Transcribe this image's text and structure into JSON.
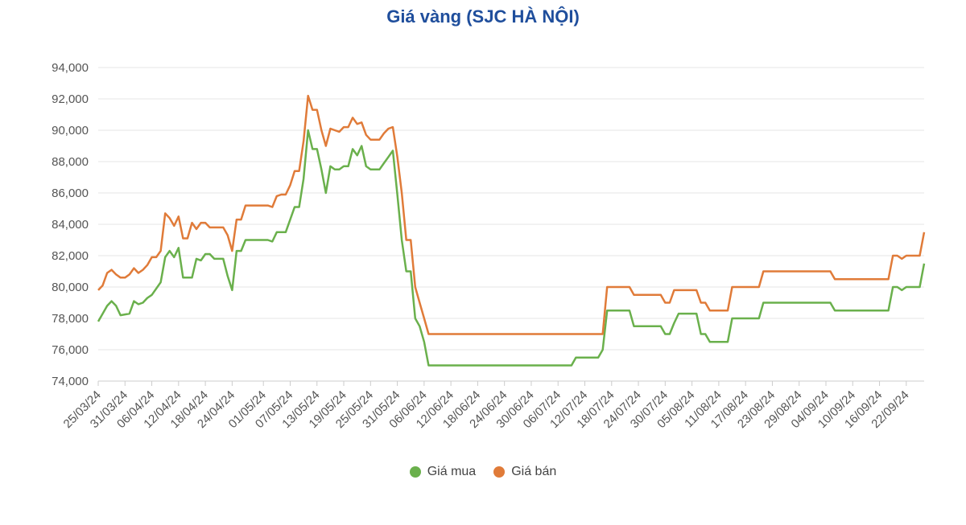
{
  "chart_data": {
    "type": "line",
    "title": "Giá vàng (SJC HÀ NỘI)",
    "xlabel": "",
    "ylabel": "",
    "ylim": [
      74000,
      94000
    ],
    "y_ticks": [
      74000,
      76000,
      78000,
      80000,
      82000,
      84000,
      86000,
      88000,
      90000,
      92000,
      94000
    ],
    "x_tick_labels": [
      "25/03/24",
      "31/03/24",
      "06/04/24",
      "12/04/24",
      "18/04/24",
      "24/04/24",
      "01/05/24",
      "07/05/24",
      "13/05/24",
      "19/05/24",
      "25/05/24",
      "31/05/24",
      "06/06/24",
      "12/06/24",
      "18/06/24",
      "24/06/24",
      "30/06/24",
      "06/07/24",
      "12/07/24",
      "18/07/24",
      "24/07/24",
      "30/07/24",
      "05/08/24",
      "11/08/24",
      "17/08/24",
      "23/08/24",
      "29/08/24",
      "04/09/24",
      "10/09/24",
      "16/09/24",
      "22/09/24"
    ],
    "grid": true,
    "legend_position": "bottom-center",
    "series": [
      {
        "name": "Giá mua",
        "color": "#6ab04c",
        "points": [
          [
            "25/03/24",
            77800
          ],
          [
            "27/03/24",
            78800
          ],
          [
            "28/03/24",
            79100
          ],
          [
            "29/03/24",
            78800
          ],
          [
            "30/03/24",
            78200
          ],
          [
            "01/04/24",
            78300
          ],
          [
            "02/04/24",
            79100
          ],
          [
            "03/04/24",
            78900
          ],
          [
            "04/04/24",
            79000
          ],
          [
            "05/04/24",
            79300
          ],
          [
            "06/04/24",
            79500
          ],
          [
            "08/04/24",
            80300
          ],
          [
            "09/04/24",
            81900
          ],
          [
            "10/04/24",
            82300
          ],
          [
            "11/04/24",
            81900
          ],
          [
            "12/04/24",
            82500
          ],
          [
            "13/04/24",
            80600
          ],
          [
            "15/04/24",
            80600
          ],
          [
            "16/04/24",
            81800
          ],
          [
            "17/04/24",
            81700
          ],
          [
            "18/04/24",
            82100
          ],
          [
            "19/04/24",
            82100
          ],
          [
            "20/04/24",
            81800
          ],
          [
            "22/04/24",
            81800
          ],
          [
            "23/04/24",
            80700
          ],
          [
            "24/04/24",
            79800
          ],
          [
            "25/04/24",
            82300
          ],
          [
            "26/04/24",
            82300
          ],
          [
            "27/04/24",
            83000
          ],
          [
            "02/05/24",
            83000
          ],
          [
            "03/05/24",
            82900
          ],
          [
            "04/05/24",
            83500
          ],
          [
            "06/05/24",
            83500
          ],
          [
            "07/05/24",
            84300
          ],
          [
            "08/05/24",
            85100
          ],
          [
            "09/05/24",
            85100
          ],
          [
            "10/05/24",
            86900
          ],
          [
            "11/05/24",
            90000
          ],
          [
            "12/05/24",
            88800
          ],
          [
            "13/05/24",
            88800
          ],
          [
            "14/05/24",
            87500
          ],
          [
            "15/05/24",
            86000
          ],
          [
            "16/05/24",
            87700
          ],
          [
            "17/05/24",
            87500
          ],
          [
            "18/05/24",
            87500
          ],
          [
            "19/05/24",
            87700
          ],
          [
            "20/05/24",
            87700
          ],
          [
            "21/05/24",
            88800
          ],
          [
            "22/05/24",
            88400
          ],
          [
            "23/05/24",
            89000
          ],
          [
            "24/05/24",
            87700
          ],
          [
            "25/05/24",
            87500
          ],
          [
            "27/05/24",
            87500
          ],
          [
            "28/05/24",
            87900
          ],
          [
            "29/05/24",
            88300
          ],
          [
            "30/05/24",
            88700
          ],
          [
            "31/05/24",
            85900
          ],
          [
            "01/06/24",
            83000
          ],
          [
            "02/06/24",
            81000
          ],
          [
            "03/06/24",
            81000
          ],
          [
            "04/06/24",
            78000
          ],
          [
            "05/06/24",
            77500
          ],
          [
            "06/06/24",
            76500
          ],
          [
            "07/06/24",
            75000
          ],
          [
            "08/06/24",
            75000
          ],
          [
            "09/07/24",
            75000
          ],
          [
            "10/07/24",
            75500
          ],
          [
            "13/07/24",
            75500
          ],
          [
            "15/07/24",
            75500
          ],
          [
            "16/07/24",
            76000
          ],
          [
            "17/07/24",
            78500
          ],
          [
            "22/07/24",
            78500
          ],
          [
            "23/07/24",
            77500
          ],
          [
            "29/07/24",
            77500
          ],
          [
            "30/07/24",
            77000
          ],
          [
            "31/07/24",
            77000
          ],
          [
            "01/08/24",
            77700
          ],
          [
            "02/08/24",
            78300
          ],
          [
            "06/08/24",
            78300
          ],
          [
            "07/08/24",
            77000
          ],
          [
            "08/08/24",
            77000
          ],
          [
            "09/08/24",
            76500
          ],
          [
            "13/08/24",
            76500
          ],
          [
            "14/08/24",
            78000
          ],
          [
            "20/08/24",
            78000
          ],
          [
            "21/08/24",
            79000
          ],
          [
            "05/09/24",
            79000
          ],
          [
            "06/09/24",
            78500
          ],
          [
            "18/09/24",
            78500
          ],
          [
            "19/09/24",
            80000
          ],
          [
            "20/09/24",
            80000
          ],
          [
            "21/09/24",
            79800
          ],
          [
            "22/09/24",
            80000
          ],
          [
            "25/09/24",
            80000
          ],
          [
            "26/09/24",
            81500
          ]
        ]
      },
      {
        "name": "Giá bán",
        "color": "#e07b39",
        "points": [
          [
            "25/03/24",
            79800
          ],
          [
            "26/03/24",
            80100
          ],
          [
            "27/03/24",
            80900
          ],
          [
            "28/03/24",
            81100
          ],
          [
            "29/03/24",
            80800
          ],
          [
            "30/03/24",
            80600
          ],
          [
            "31/03/24",
            80600
          ],
          [
            "01/04/24",
            80800
          ],
          [
            "02/04/24",
            81200
          ],
          [
            "03/04/24",
            80900
          ],
          [
            "04/04/24",
            81100
          ],
          [
            "05/04/24",
            81400
          ],
          [
            "06/04/24",
            81900
          ],
          [
            "07/04/24",
            81900
          ],
          [
            "08/04/24",
            82300
          ],
          [
            "09/04/24",
            84700
          ],
          [
            "10/04/24",
            84400
          ],
          [
            "11/04/24",
            83900
          ],
          [
            "12/04/24",
            84500
          ],
          [
            "13/04/24",
            83100
          ],
          [
            "14/04/24",
            83100
          ],
          [
            "15/04/24",
            84100
          ],
          [
            "16/04/24",
            83700
          ],
          [
            "17/04/24",
            84100
          ],
          [
            "18/04/24",
            84100
          ],
          [
            "19/04/24",
            83800
          ],
          [
            "21/04/24",
            83800
          ],
          [
            "22/04/24",
            83800
          ],
          [
            "23/04/24",
            83300
          ],
          [
            "24/04/24",
            82300
          ],
          [
            "25/04/24",
            84300
          ],
          [
            "26/04/24",
            84300
          ],
          [
            "27/04/24",
            85200
          ],
          [
            "02/05/24",
            85200
          ],
          [
            "03/05/24",
            85100
          ],
          [
            "04/05/24",
            85800
          ],
          [
            "05/05/24",
            85900
          ],
          [
            "06/05/24",
            85900
          ],
          [
            "07/05/24",
            86500
          ],
          [
            "08/05/24",
            87400
          ],
          [
            "09/05/24",
            87400
          ],
          [
            "10/05/24",
            89300
          ],
          [
            "11/05/24",
            92200
          ],
          [
            "12/05/24",
            91300
          ],
          [
            "13/05/24",
            91300
          ],
          [
            "14/05/24",
            90000
          ],
          [
            "15/05/24",
            89000
          ],
          [
            "16/05/24",
            90100
          ],
          [
            "17/05/24",
            90000
          ],
          [
            "18/05/24",
            89900
          ],
          [
            "19/05/24",
            90200
          ],
          [
            "20/05/24",
            90200
          ],
          [
            "21/05/24",
            90800
          ],
          [
            "22/05/24",
            90400
          ],
          [
            "23/05/24",
            90500
          ],
          [
            "24/05/24",
            89700
          ],
          [
            "25/05/24",
            89400
          ],
          [
            "27/05/24",
            89400
          ],
          [
            "28/05/24",
            89800
          ],
          [
            "29/05/24",
            90100
          ],
          [
            "30/05/24",
            90200
          ],
          [
            "31/05/24",
            88300
          ],
          [
            "01/06/24",
            86000
          ],
          [
            "02/06/24",
            83000
          ],
          [
            "03/06/24",
            83000
          ],
          [
            "04/06/24",
            80000
          ],
          [
            "05/06/24",
            79000
          ],
          [
            "06/06/24",
            78000
          ],
          [
            "07/06/24",
            77000
          ],
          [
            "16/07/24",
            77000
          ],
          [
            "17/07/24",
            80000
          ],
          [
            "22/07/24",
            80000
          ],
          [
            "23/07/24",
            79500
          ],
          [
            "29/07/24",
            79500
          ],
          [
            "30/07/24",
            79000
          ],
          [
            "31/07/24",
            79000
          ],
          [
            "01/08/24",
            79800
          ],
          [
            "06/08/24",
            79800
          ],
          [
            "07/08/24",
            79000
          ],
          [
            "08/08/24",
            79000
          ],
          [
            "09/08/24",
            78500
          ],
          [
            "13/08/24",
            78500
          ],
          [
            "14/08/24",
            80000
          ],
          [
            "20/08/24",
            80000
          ],
          [
            "21/08/24",
            81000
          ],
          [
            "05/09/24",
            81000
          ],
          [
            "06/09/24",
            80500
          ],
          [
            "18/09/24",
            80500
          ],
          [
            "19/09/24",
            82000
          ],
          [
            "20/09/24",
            82000
          ],
          [
            "21/09/24",
            81800
          ],
          [
            "22/09/24",
            82000
          ],
          [
            "25/09/24",
            82000
          ],
          [
            "26/09/24",
            83500
          ]
        ]
      }
    ]
  }
}
